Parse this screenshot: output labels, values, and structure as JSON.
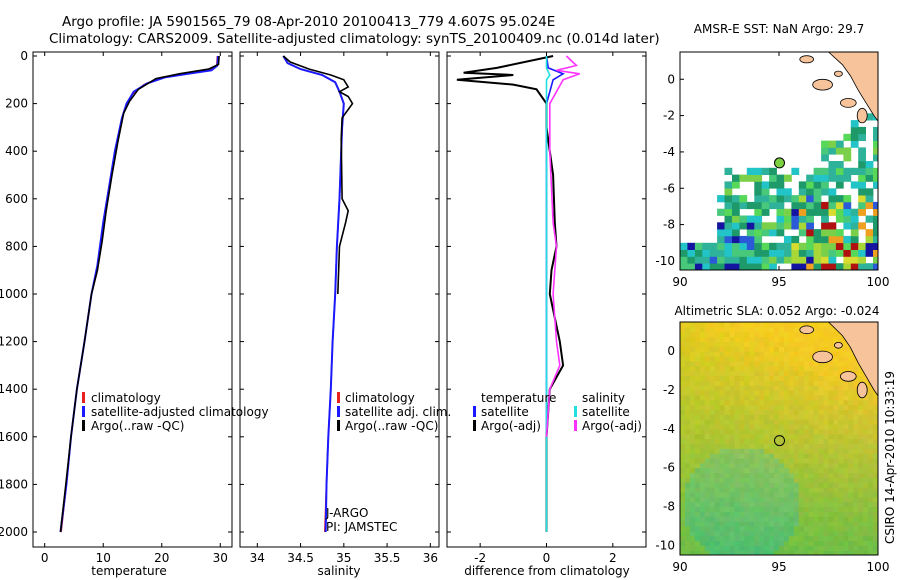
{
  "title_line1": "Argo profile: JA 5901565_79 08-Apr-2010 20100413_779 4.607S 95.024E",
  "title_line2": "Climatology: CARS2009. Satellite-adjusted climatology: synTS_20100409.nc (0.014d later)",
  "side_label": "CSIRO 14-Apr-2010 10:33:19",
  "colors": {
    "climatology": "#e82020",
    "satellite": "#1a1aff",
    "argo": "#000000",
    "sat_diff_salinity": "#22e0e0",
    "argo_diff_salinity": "#ff33ff",
    "land": "#f6c39a"
  },
  "chart_data": [
    {
      "type": "line",
      "name": "temperature",
      "xlabel": "temperature",
      "ylabel": "",
      "xlim": [
        -2,
        32
      ],
      "ylim": [
        2100,
        0
      ],
      "xticks": [
        0,
        10,
        20,
        30
      ],
      "yticks": [
        0,
        200,
        400,
        600,
        800,
        1000,
        1200,
        1400,
        1600,
        1800,
        2000
      ],
      "legend": [
        "climatology",
        "satellite-adjusted climatology",
        "Argo(..raw -QC)"
      ],
      "legend_position": "lower-right",
      "series": [
        {
          "name": "climatology",
          "color": "#e82020",
          "points": [
            [
              29.5,
              0
            ],
            [
              29.4,
              40
            ],
            [
              28,
              60
            ],
            [
              24,
              75
            ],
            [
              20,
              90
            ],
            [
              17,
              120
            ],
            [
              15,
              160
            ],
            [
              14,
              200
            ],
            [
              13.2,
              260
            ],
            [
              12,
              400
            ],
            [
              11,
              550
            ],
            [
              10,
              700
            ],
            [
              9,
              900
            ],
            [
              8,
              1000
            ],
            [
              6.8,
              1200
            ],
            [
              5.5,
              1400
            ],
            [
              4.5,
              1600
            ],
            [
              3.7,
              1800
            ],
            [
              2.8,
              2000
            ]
          ]
        },
        {
          "name": "satellite-adjusted climatology",
          "color": "#1a1aff",
          "points": [
            [
              29.6,
              0
            ],
            [
              29.5,
              40
            ],
            [
              28.5,
              60
            ],
            [
              24.5,
              75
            ],
            [
              20.5,
              90
            ],
            [
              17.5,
              115
            ],
            [
              15.2,
              150
            ],
            [
              14,
              200
            ],
            [
              13.2,
              260
            ],
            [
              12,
              400
            ],
            [
              11,
              550
            ],
            [
              10,
              700
            ],
            [
              9,
              880
            ],
            [
              8,
              1000
            ],
            [
              6.8,
              1200
            ],
            [
              5.5,
              1400
            ],
            [
              4.5,
              1600
            ],
            [
              3.7,
              1800
            ],
            [
              2.7,
              2000
            ]
          ]
        },
        {
          "name": "Argo(..raw -QC)",
          "color": "#000000",
          "points": [
            [
              29.8,
              0
            ],
            [
              29.7,
              35
            ],
            [
              28,
              55
            ],
            [
              23,
              75
            ],
            [
              19,
              95
            ],
            [
              16,
              140
            ],
            [
              14.5,
              190
            ],
            [
              13.5,
              240
            ],
            [
              12.5,
              360
            ],
            [
              11.5,
              500
            ],
            [
              10.5,
              650
            ],
            [
              9.8,
              780
            ],
            [
              9,
              900
            ],
            [
              8,
              1000
            ],
            [
              6.8,
              1200
            ],
            [
              5.5,
              1400
            ],
            [
              4.5,
              1600
            ],
            [
              3.6,
              1800
            ],
            [
              2.7,
              2000
            ]
          ]
        }
      ]
    },
    {
      "type": "line",
      "name": "salinity",
      "xlabel": "salinity",
      "xlim": [
        33.8,
        36.1
      ],
      "ylim": [
        2100,
        0
      ],
      "xticks": [
        34,
        34.5,
        35,
        35.5,
        36
      ],
      "xticklabels": [
        "34",
        "34.5",
        "35",
        "35.5",
        "36"
      ],
      "legend": [
        "climatology",
        "satellite adj. clim.",
        "Argo(..raw -QC)"
      ],
      "legend_position": "lower-right",
      "annotations": [
        "J-ARGO",
        "PI: JAMSTEC"
      ],
      "series": [
        {
          "name": "climatology",
          "color": "#e82020",
          "points": [
            [
              34.3,
              0
            ],
            [
              34.35,
              30
            ],
            [
              34.5,
              55
            ],
            [
              34.75,
              80
            ],
            [
              34.9,
              110
            ],
            [
              34.95,
              150
            ],
            [
              35.0,
              200
            ],
            [
              34.98,
              300
            ],
            [
              34.97,
              400
            ],
            [
              34.95,
              600
            ],
            [
              34.92,
              800
            ],
            [
              34.9,
              1000
            ],
            [
              34.87,
              1200
            ],
            [
              34.85,
              1400
            ],
            [
              34.82,
              1600
            ],
            [
              34.8,
              1800
            ],
            [
              34.78,
              2000
            ]
          ]
        },
        {
          "name": "satellite adj. clim.",
          "color": "#1a1aff",
          "points": [
            [
              34.3,
              0
            ],
            [
              34.35,
              30
            ],
            [
              34.5,
              55
            ],
            [
              34.75,
              80
            ],
            [
              34.9,
              110
            ],
            [
              34.95,
              150
            ],
            [
              35.0,
              200
            ],
            [
              34.98,
              300
            ],
            [
              34.97,
              400
            ],
            [
              34.95,
              600
            ],
            [
              34.92,
              800
            ],
            [
              34.9,
              1000
            ],
            [
              34.87,
              1200
            ],
            [
              34.85,
              1400
            ],
            [
              34.82,
              1600
            ],
            [
              34.8,
              1800
            ],
            [
              34.79,
              2000
            ]
          ]
        },
        {
          "name": "Argo(..raw -QC)",
          "color": "#000000",
          "points": [
            [
              34.3,
              0
            ],
            [
              34.38,
              25
            ],
            [
              34.6,
              55
            ],
            [
              34.85,
              80
            ],
            [
              35.0,
              100
            ],
            [
              35.05,
              130
            ],
            [
              34.95,
              150
            ],
            [
              35.05,
              170
            ],
            [
              35.1,
              200
            ],
            [
              34.98,
              260
            ],
            [
              34.97,
              350
            ],
            [
              34.98,
              600
            ],
            [
              35.05,
              650
            ],
            [
              35.02,
              700
            ],
            [
              34.95,
              800
            ],
            [
              34.93,
              1000
            ]
          ]
        }
      ]
    },
    {
      "type": "line",
      "name": "difference",
      "xlabel": "difference from climatology",
      "xlim": [
        -3,
        3
      ],
      "ylim": [
        2100,
        0
      ],
      "xticks": [
        -2,
        0,
        2
      ],
      "legend_groups": [
        {
          "heading": "temperature",
          "items": [
            "satellite",
            "Argo(-adj)"
          ]
        },
        {
          "heading": "salinity",
          "items": [
            "satellite",
            "Argo(-adj)"
          ]
        }
      ],
      "legend_position": "lower",
      "series": [
        {
          "name": "temperature satellite",
          "color": "#1a1aff",
          "points": [
            [
              0,
              0
            ],
            [
              0.05,
              50
            ],
            [
              0.5,
              75
            ],
            [
              0.2,
              100
            ],
            [
              0,
              200
            ],
            [
              0,
              400
            ],
            [
              0,
              600
            ],
            [
              0,
              800
            ],
            [
              0,
              1000
            ],
            [
              0,
              1200
            ],
            [
              0,
              1400
            ],
            [
              0,
              1600
            ],
            [
              0,
              1800
            ],
            [
              0,
              2000
            ]
          ]
        },
        {
          "name": "temperature Argo(-adj)",
          "color": "#000000",
          "points": [
            [
              0.2,
              0
            ],
            [
              -1.5,
              50
            ],
            [
              -2.5,
              70
            ],
            [
              -1,
              80
            ],
            [
              -2.7,
              100
            ],
            [
              -1,
              120
            ],
            [
              -0.3,
              140
            ],
            [
              0,
              200
            ],
            [
              0,
              300
            ],
            [
              0.2,
              500
            ],
            [
              0.25,
              700
            ],
            [
              0.3,
              800
            ],
            [
              0.15,
              900
            ],
            [
              0.1,
              1000
            ],
            [
              0.4,
              1200
            ],
            [
              0.5,
              1300
            ],
            [
              0.1,
              1400
            ],
            [
              0,
              1600
            ],
            [
              0,
              1800
            ],
            [
              0,
              2000
            ]
          ]
        },
        {
          "name": "salinity satellite",
          "color": "#22e0e0",
          "points": [
            [
              0,
              0
            ],
            [
              0,
              50
            ],
            [
              0.1,
              80
            ],
            [
              0,
              100
            ],
            [
              0,
              200
            ],
            [
              0,
              400
            ],
            [
              0,
              800
            ],
            [
              0,
              1000
            ],
            [
              0,
              1300
            ],
            [
              0,
              1500
            ],
            [
              0,
              1700
            ],
            [
              0,
              2000
            ]
          ]
        },
        {
          "name": "salinity Argo(-adj)",
          "color": "#ff33ff",
          "points": [
            [
              0.6,
              0
            ],
            [
              0.9,
              40
            ],
            [
              0.3,
              60
            ],
            [
              1.0,
              75
            ],
            [
              0.5,
              100
            ],
            [
              0.1,
              200
            ],
            [
              0.1,
              400
            ],
            [
              0.2,
              700
            ],
            [
              0.3,
              800
            ],
            [
              0.2,
              1000
            ],
            [
              0.3,
              1200
            ],
            [
              0.4,
              1300
            ],
            [
              0.1,
              1400
            ],
            [
              0,
              1600
            ]
          ]
        }
      ]
    },
    {
      "type": "heatmap",
      "name": "sst_map",
      "title": "AMSR-E SST: NaN Argo: 29.7",
      "xlim": [
        90,
        100
      ],
      "ylim": [
        -10.5,
        1.5
      ],
      "xticks": [
        90,
        95,
        100
      ],
      "yticks": [
        0,
        -2,
        -4,
        -6,
        -8,
        -10
      ],
      "marker": [
        95.024,
        -4.607
      ]
    },
    {
      "type": "heatmap",
      "name": "sla_map",
      "title": "Altimetric SLA: 0.052 Argo: -0.024",
      "xlim": [
        90,
        100
      ],
      "ylim": [
        -10.5,
        1.5
      ],
      "xticks": [
        90,
        95,
        100
      ],
      "yticks": [
        0,
        -2,
        -4,
        -6,
        -8,
        -10
      ],
      "marker": [
        95.024,
        -4.607
      ]
    }
  ]
}
